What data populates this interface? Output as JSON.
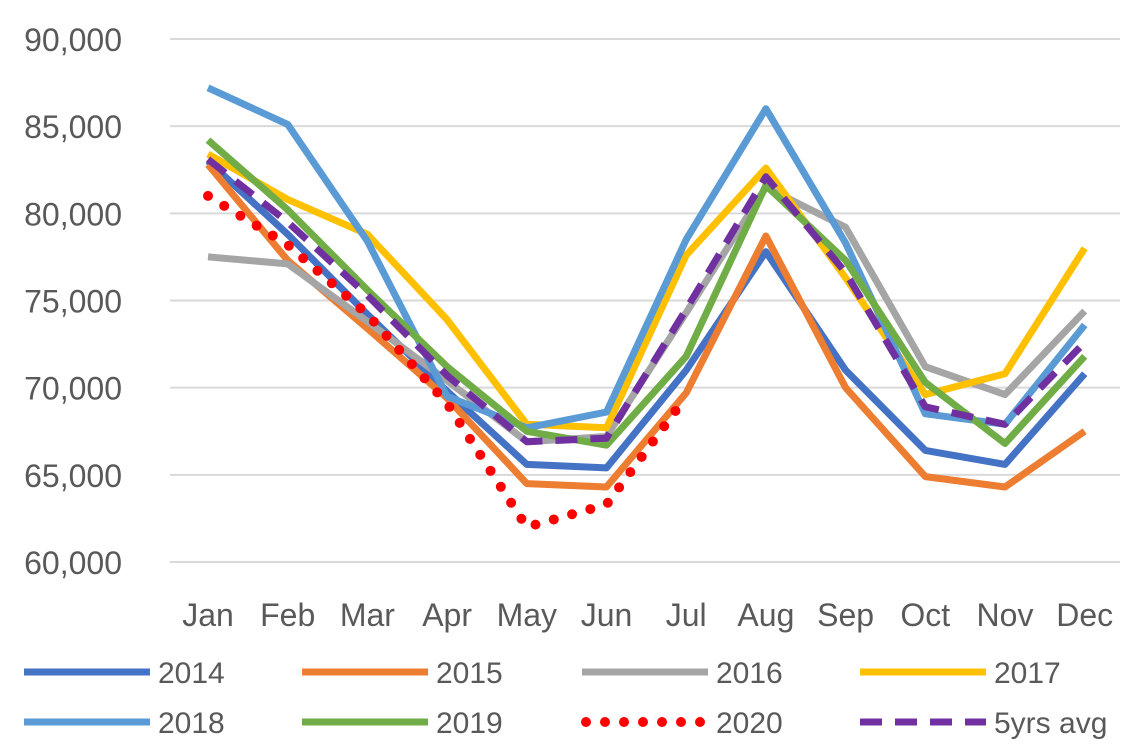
{
  "chart_data": {
    "type": "line",
    "title": "",
    "xlabel": "",
    "ylabel": "",
    "categories": [
      "Jan",
      "Feb",
      "Mar",
      "Apr",
      "May",
      "Jun",
      "Jul",
      "Aug",
      "Sep",
      "Oct",
      "Nov",
      "Dec"
    ],
    "ylim": [
      60000,
      90000
    ],
    "yticks": [
      60000,
      65000,
      70000,
      75000,
      80000,
      85000,
      90000
    ],
    "ytick_labels": [
      "60,000",
      "65,000",
      "70,000",
      "75,000",
      "80,000",
      "85,000",
      "90,000"
    ],
    "grid": true,
    "legend_position": "bottom",
    "series": [
      {
        "name": "2014",
        "color": "#4472C4",
        "style": "solid",
        "values": [
          83000,
          78800,
          74200,
          69800,
          65600,
          65400,
          71000,
          77800,
          71000,
          66400,
          65600,
          70800
        ]
      },
      {
        "name": "2015",
        "color": "#ED7D31",
        "style": "solid",
        "values": [
          82800,
          77300,
          73400,
          69400,
          64500,
          64300,
          69700,
          78700,
          70000,
          64900,
          64300,
          67500
        ]
      },
      {
        "name": "2016",
        "color": "#A5A5A5",
        "style": "solid",
        "values": [
          77500,
          77100,
          73800,
          70400,
          66900,
          67200,
          74300,
          81500,
          79200,
          71200,
          69600,
          74400
        ]
      },
      {
        "name": "2017",
        "color": "#FFC000",
        "style": "solid",
        "values": [
          83400,
          80800,
          78800,
          73900,
          67900,
          67700,
          77600,
          82600,
          76300,
          69600,
          70800,
          78000
        ]
      },
      {
        "name": "2018",
        "color": "#5B9BD5",
        "style": "solid",
        "values": [
          87200,
          85100,
          78400,
          69500,
          67700,
          68600,
          78500,
          86000,
          78300,
          68500,
          67900,
          73600
        ]
      },
      {
        "name": "2019",
        "color": "#70AD47",
        "style": "solid",
        "values": [
          84200,
          80200,
          75600,
          71200,
          67500,
          66700,
          71800,
          81600,
          77300,
          70300,
          66800,
          71800
        ]
      },
      {
        "name": "2020",
        "color": "#FF0000",
        "style": "dotted",
        "values": [
          81000,
          78200,
          74200,
          69100,
          62000,
          63300,
          69500,
          null,
          null,
          null,
          null,
          null
        ]
      },
      {
        "name": "5yrs avg",
        "color": "#7030A0",
        "style": "dashed",
        "values": [
          83100,
          79500,
          75300,
          70700,
          66900,
          67100,
          74500,
          82100,
          76600,
          68900,
          67900,
          72600
        ]
      }
    ]
  }
}
